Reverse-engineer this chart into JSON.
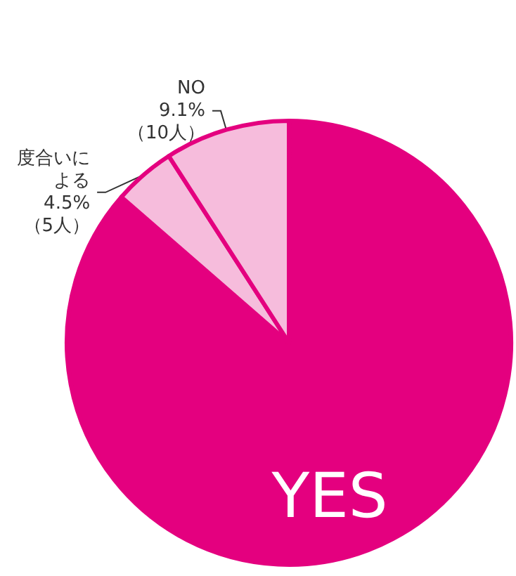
{
  "chart_data": {
    "type": "pie",
    "categories": [
      "YES",
      "度合いによる",
      "NO"
    ],
    "values": [
      86.4,
      4.5,
      9.1
    ],
    "colors": [
      "#e4007f",
      "#f6bcdc",
      "#f6bcdc"
    ],
    "value_labels": [
      null,
      "4.5%\n（5人）",
      "9.1%\n（10人）"
    ],
    "legend": false
  }
}
